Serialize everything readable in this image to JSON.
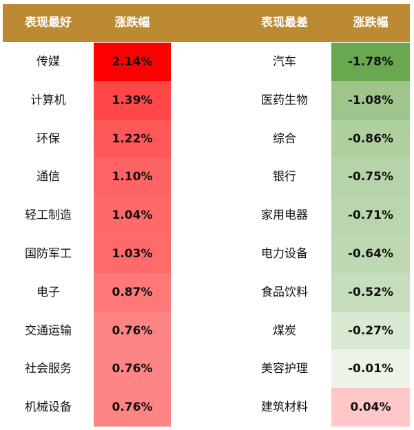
{
  "chart_data": {
    "type": "table",
    "headers": {
      "best_name": "表现最好",
      "best_change": "涨跌幅",
      "worst_name": "表现最差",
      "worst_change": "涨跌幅"
    },
    "best": [
      {
        "name": "传媒",
        "change": "2.14%",
        "value": 2.14
      },
      {
        "name": "计算机",
        "change": "1.39%",
        "value": 1.39
      },
      {
        "name": "环保",
        "change": "1.22%",
        "value": 1.22
      },
      {
        "name": "通信",
        "change": "1.10%",
        "value": 1.1
      },
      {
        "name": "轻工制造",
        "change": "1.04%",
        "value": 1.04
      },
      {
        "name": "国防军工",
        "change": "1.03%",
        "value": 1.03
      },
      {
        "name": "电子",
        "change": "0.87%",
        "value": 0.87
      },
      {
        "name": "交通运输",
        "change": "0.76%",
        "value": 0.76
      },
      {
        "name": "社会服务",
        "change": "0.76%",
        "value": 0.76
      },
      {
        "name": "机械设备",
        "change": "0.76%",
        "value": 0.76
      }
    ],
    "worst": [
      {
        "name": "汽车",
        "change": "-1.78%",
        "value": -1.78
      },
      {
        "name": "医药生物",
        "change": "-1.08%",
        "value": -1.08
      },
      {
        "name": "综合",
        "change": "-0.86%",
        "value": -0.86
      },
      {
        "name": "银行",
        "change": "-0.75%",
        "value": -0.75
      },
      {
        "name": "家用电器",
        "change": "-0.71%",
        "value": -0.71
      },
      {
        "name": "电力设备",
        "change": "-0.64%",
        "value": -0.64
      },
      {
        "name": "食品饮料",
        "change": "-0.52%",
        "value": -0.52
      },
      {
        "name": "煤炭",
        "change": "-0.27%",
        "value": -0.27
      },
      {
        "name": "美容护理",
        "change": "-0.01%",
        "value": -0.01
      },
      {
        "name": "建筑材料",
        "change": "0.04%",
        "value": 0.04
      }
    ],
    "colors": {
      "header_bg": "#bd8a34",
      "header_text": "#ffffff",
      "positive_max": "#ff0000",
      "negative_max": "#6aa84f"
    }
  }
}
